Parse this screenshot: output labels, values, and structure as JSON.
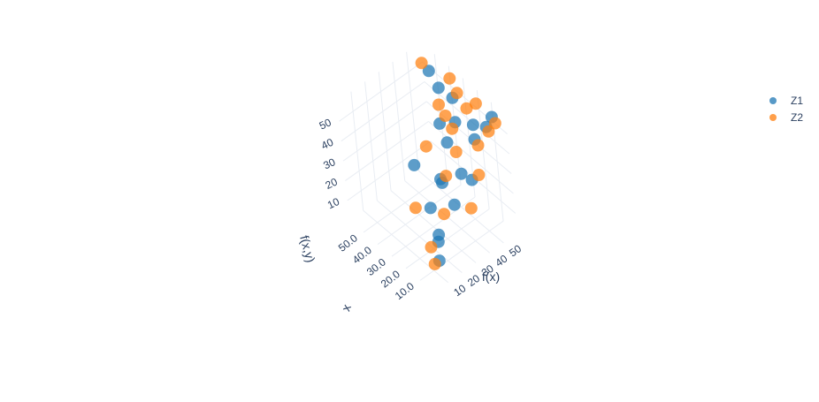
{
  "chart_data": {
    "type": "scatter",
    "projection": "3d",
    "title": "",
    "axes": {
      "x": {
        "title": "x",
        "ticks": [
          "10.0",
          "20.0",
          "30.0",
          "40.0",
          "50.0"
        ],
        "range": [
          0,
          60
        ]
      },
      "y": {
        "title": "f(x)",
        "ticks": [
          "10",
          "20",
          "30",
          "40",
          "50"
        ],
        "range": [
          0,
          60
        ]
      },
      "z": {
        "title": "f(x,y)",
        "ticks": [
          "10",
          "20",
          "30",
          "40",
          "50"
        ],
        "range": [
          0,
          60
        ]
      }
    },
    "grid": true,
    "legend": {
      "position": "top-right"
    },
    "series": [
      {
        "name": "Z1",
        "color": "#1f77b4",
        "points": [
          [
            5,
            55,
            58
          ],
          [
            10,
            55,
            50
          ],
          [
            20,
            55,
            45
          ],
          [
            12,
            48,
            46
          ],
          [
            28,
            50,
            44
          ],
          [
            35,
            56,
            49
          ],
          [
            45,
            56,
            48
          ],
          [
            50,
            55,
            54
          ],
          [
            30,
            45,
            35
          ],
          [
            40,
            50,
            36
          ],
          [
            8,
            40,
            32
          ],
          [
            18,
            42,
            28
          ],
          [
            12,
            30,
            22
          ],
          [
            22,
            32,
            26
          ],
          [
            30,
            38,
            20
          ],
          [
            15,
            20,
            10
          ],
          [
            10,
            15,
            12
          ],
          [
            5,
            10,
            8
          ],
          [
            25,
            25,
            15
          ],
          [
            40,
            30,
            25
          ]
        ]
      },
      {
        "name": "Z2",
        "color": "#ff7f0e",
        "points": [
          [
            4,
            56,
            55
          ],
          [
            12,
            58,
            45
          ],
          [
            22,
            60,
            52
          ],
          [
            18,
            50,
            57
          ],
          [
            30,
            55,
            55
          ],
          [
            38,
            58,
            56
          ],
          [
            55,
            55,
            55
          ],
          [
            12,
            50,
            42
          ],
          [
            25,
            45,
            45
          ],
          [
            35,
            50,
            43
          ],
          [
            45,
            55,
            40
          ],
          [
            8,
            45,
            32
          ],
          [
            18,
            40,
            40
          ],
          [
            5,
            35,
            22
          ],
          [
            22,
            35,
            28
          ],
          [
            35,
            35,
            35
          ],
          [
            15,
            25,
            18
          ],
          [
            25,
            15,
            20
          ],
          [
            8,
            8,
            14
          ],
          [
            3,
            5,
            10
          ]
        ]
      }
    ]
  }
}
